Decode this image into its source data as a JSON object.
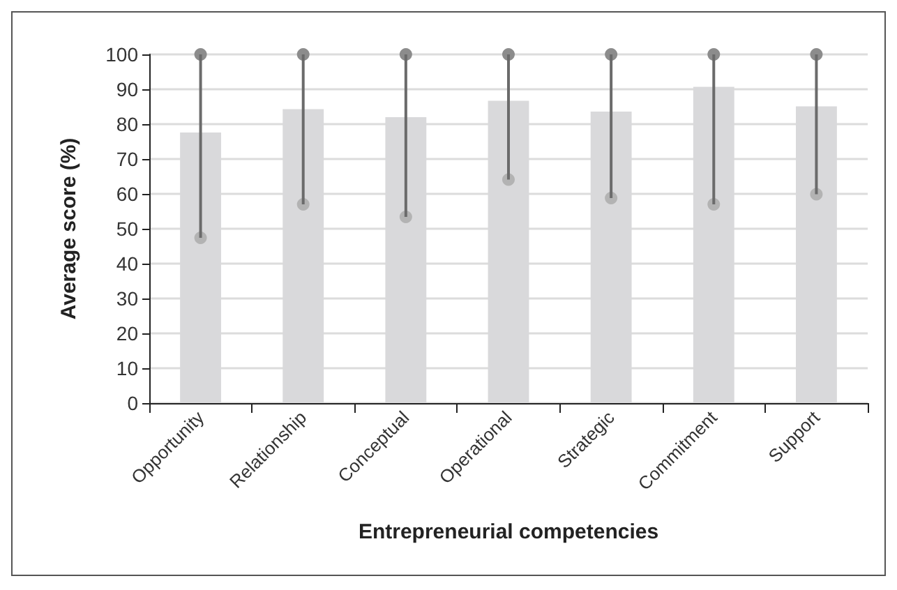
{
  "chart_data": {
    "type": "bar",
    "xlabel": "Entrepreneurial competencies",
    "ylabel": "Average score (%)",
    "categories": [
      "Opportunity",
      "Relationship",
      "Conceptual",
      "Operational",
      "Strategic",
      "Commitment",
      "Support"
    ],
    "series": [
      {
        "color": "#d9d9db",
        "values": [
          77.6,
          84.3,
          82,
          86.7,
          83.6,
          90.7,
          85.1
        ]
      },
      {
        "color": "#6b6b6b",
        "base": [
          47.4,
          57,
          53.4,
          64.1,
          58.8,
          57,
          59.9
        ],
        "values": [
          52.6,
          43,
          46.6,
          35.9,
          41.2,
          43,
          40.1
        ]
      },
      {
        "type": "scatter",
        "color": "#8c8c8c",
        "x": [
          "Opportunity",
          "Relationship",
          "Conceptual",
          "Operational",
          "Strategic",
          "Commitment",
          "Support"
        ],
        "values": [
          100,
          100,
          100,
          100,
          100,
          100,
          100
        ]
      },
      {
        "type": "scatter",
        "color": "#b3b3b3",
        "x": [
          "Opportunity",
          "Relationship",
          "Conceptual",
          "Operational",
          "Strategic",
          "Commitment",
          "Support"
        ],
        "values": [
          47.4,
          57,
          53.4,
          64.1,
          58.8,
          57,
          59.9
        ]
      }
    ],
    "marker": "circle",
    "ylim": [
      0,
      100
    ],
    "yticks": [
      0,
      10,
      20,
      30,
      40,
      50,
      60,
      70,
      80,
      90,
      100
    ],
    "grid": "y"
  }
}
